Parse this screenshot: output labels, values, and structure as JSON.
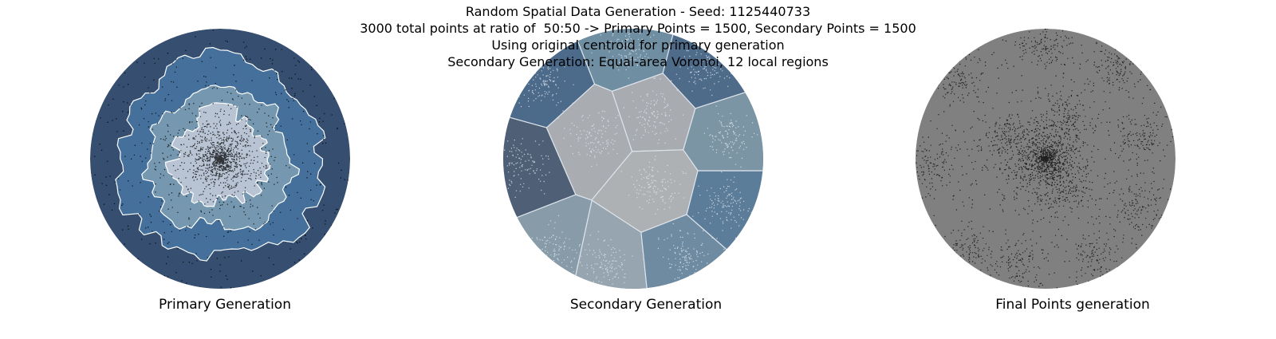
{
  "figure": {
    "title_lines": [
      "Random Spatial Data Generation - Seed: 1125440733",
      "3000 total points at ratio of  50:50 -> Primary Points = 1500, Secondary Points = 1500",
      "Using original centroid for primary generation",
      "Secondary Generation: Equal-area Voronoi, 12 local regions"
    ]
  },
  "panels": {
    "primary": {
      "label": "Primary Generation",
      "ring_colors": [
        "#364e70",
        "#44709b",
        "#7598b0",
        "#b8c4d4"
      ],
      "contour_color": "#ffffff",
      "point_color": "#000000"
    },
    "secondary": {
      "label": "Secondary Generation",
      "region_colors": [
        "#6f8ea2",
        "#4c6a8a",
        "#4f6076",
        "#879ba8",
        "#96a5af",
        "#6e8ba2",
        "#5b7d99",
        "#7b95a4",
        "#4f6b8a",
        "#a9adb2",
        "#a8acb1",
        "#aeb1b3"
      ],
      "border_color": "#dde3ea",
      "point_color": "#e5eaf0"
    },
    "final": {
      "label": "Final Points generation",
      "fill_color": "#808080",
      "point_color": "#000000"
    }
  }
}
